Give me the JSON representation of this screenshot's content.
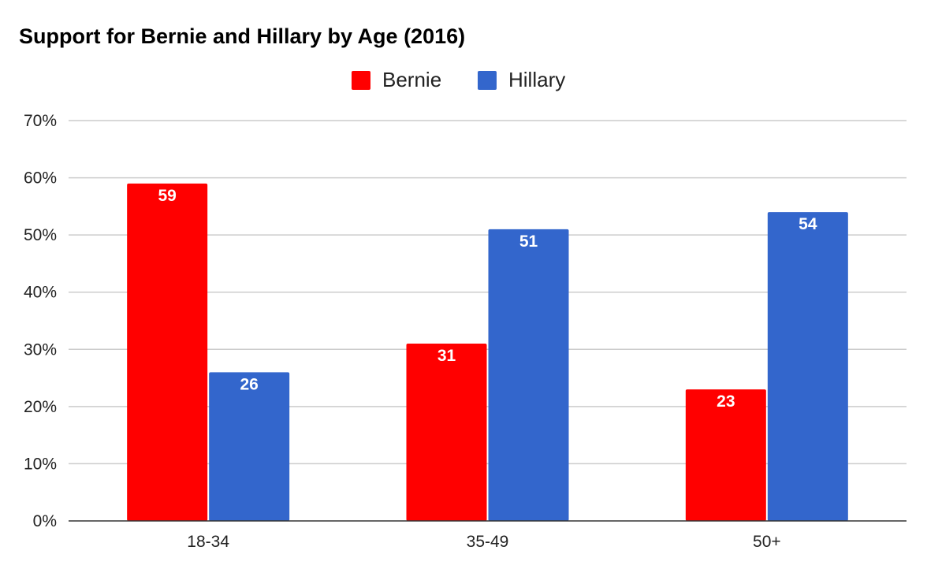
{
  "chart_data": {
    "type": "bar",
    "title": "Support for Bernie and Hillary by Age (2016)",
    "categories": [
      "18-34",
      "35-49",
      "50+"
    ],
    "series": [
      {
        "name": "Bernie",
        "color": "#ff0000",
        "values": [
          59,
          31,
          23
        ]
      },
      {
        "name": "Hillary",
        "color": "#3366cc",
        "values": [
          26,
          51,
          54
        ]
      }
    ],
    "yticks": [
      "0%",
      "10%",
      "20%",
      "30%",
      "40%",
      "50%",
      "60%",
      "70%"
    ],
    "ylim": [
      0,
      70
    ],
    "xlabel": "",
    "ylabel": "",
    "grid": true,
    "legend_position": "top-center",
    "data_labels": true
  }
}
